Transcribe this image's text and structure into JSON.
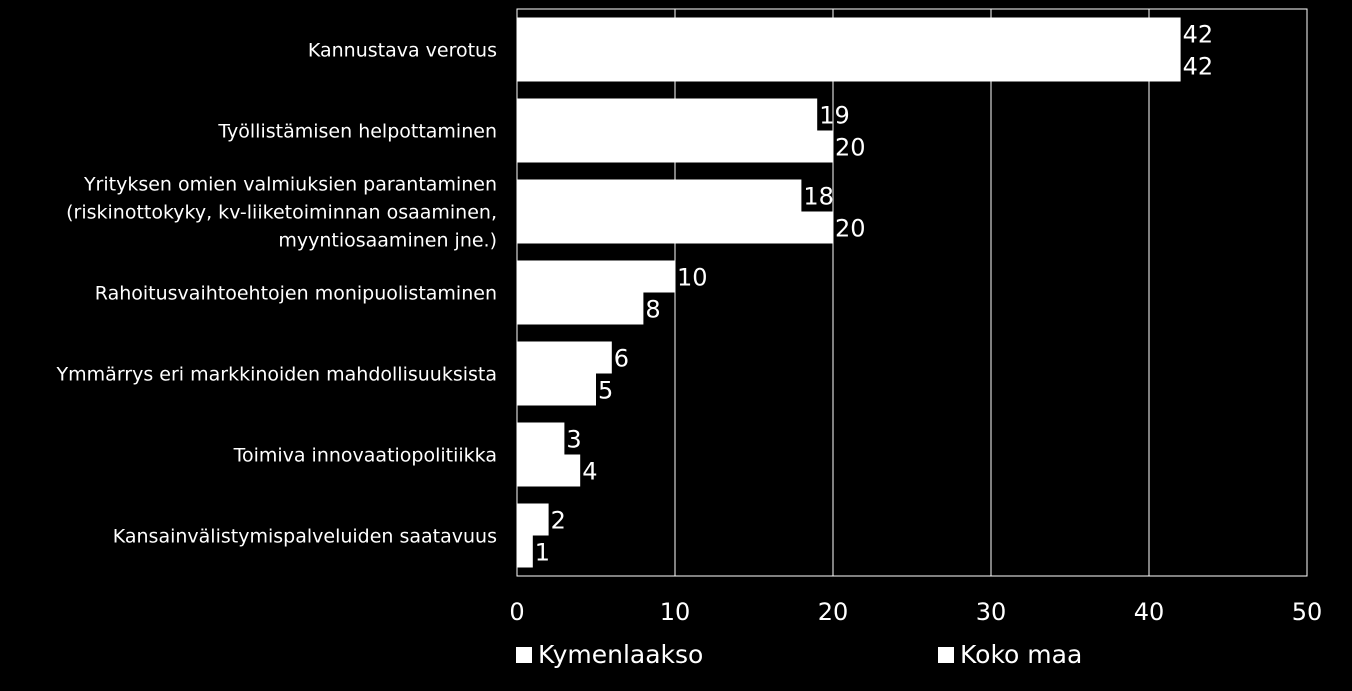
{
  "chart_data": {
    "type": "bar",
    "orientation": "horizontal",
    "categories": [
      [
        "Kannustava verotus"
      ],
      [
        "Työllistämisen helpottaminen"
      ],
      [
        "Yrityksen omien valmiuksien parantaminen",
        "(riskinottokyky, kv-liiketoiminnan osaaminen,",
        "myyntiosaaminen jne.)"
      ],
      [
        "Rahoitusvaihtoehtojen monipuolistaminen"
      ],
      [
        "Ymmärrys eri markkinoiden mahdollisuuksista"
      ],
      [
        "Toimiva innovaatiopolitiikka"
      ],
      [
        "Kansainvälistymispalveluiden saatavuus"
      ]
    ],
    "series": [
      {
        "name": "Kymenlaakso",
        "values": [
          42,
          19,
          18,
          10,
          6,
          3,
          2
        ]
      },
      {
        "name": "Koko maa",
        "values": [
          42,
          20,
          20,
          8,
          5,
          4,
          1
        ]
      }
    ],
    "xlim": [
      0,
      50
    ],
    "xticks": [
      0,
      10,
      20,
      30,
      40,
      50
    ],
    "grid": true,
    "legend_position": "bottom",
    "bar_color": "#ffffff",
    "background_color": "#000000"
  }
}
